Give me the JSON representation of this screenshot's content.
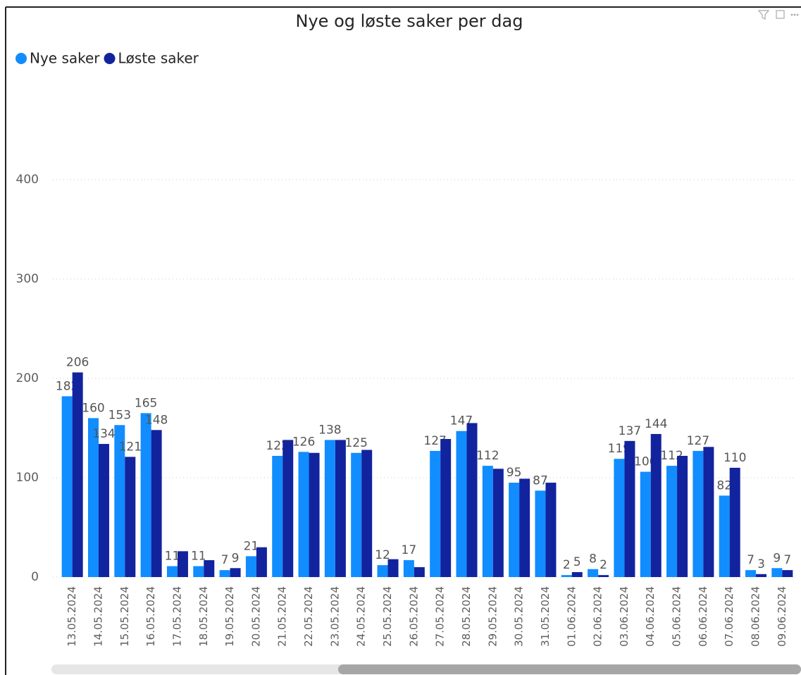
{
  "chart_data": {
    "type": "bar",
    "title": "Nye og løste saker per dag",
    "categories": [
      "13.05.2024",
      "14.05.2024",
      "15.05.2024",
      "16.05.2024",
      "17.05.2024",
      "18.05.2024",
      "19.05.2024",
      "20.05.2024",
      "21.05.2024",
      "22.05.2024",
      "23.05.2024",
      "24.05.2024",
      "25.05.2024",
      "26.05.2024",
      "27.05.2024",
      "28.05.2024",
      "29.05.2024",
      "30.05.2024",
      "31.05.2024",
      "01.06.2024",
      "02.06.2024",
      "03.06.2024",
      "04.06.2024",
      "05.06.2024",
      "06.06.2024",
      "07.06.2024",
      "08.06.2024",
      "09.06.2024"
    ],
    "series": [
      {
        "name": "Nye saker",
        "color": "#118dff",
        "values": [
          182,
          160,
          153,
          165,
          11,
          11,
          7,
          21,
          122,
          126,
          138,
          125,
          12,
          17,
          127,
          147,
          112,
          95,
          87,
          2,
          8,
          119,
          106,
          112,
          127,
          82,
          7,
          9
        ],
        "value_labels": [
          "182",
          "160",
          "153",
          "165",
          "11",
          "11",
          "7",
          "21",
          "122",
          "126",
          "138",
          "125",
          "12",
          "17",
          "127",
          "147",
          "112",
          "95",
          "87",
          "2",
          "8",
          "119",
          "106",
          "112",
          "127",
          "82",
          "7",
          "9"
        ]
      },
      {
        "name": "Løste saker",
        "color": "#12239e",
        "values": [
          206,
          134,
          121,
          148,
          26,
          17,
          9,
          30,
          138,
          125,
          138,
          128,
          18,
          10,
          139,
          155,
          109,
          99,
          95,
          5,
          2,
          137,
          144,
          122,
          131,
          110,
          3,
          7
        ],
        "value_labels": [
          "206",
          "134",
          "121",
          "148",
          null,
          null,
          "9",
          null,
          null,
          null,
          null,
          null,
          null,
          null,
          null,
          null,
          null,
          null,
          null,
          "5",
          "2",
          "137",
          "144",
          null,
          null,
          "110",
          "3",
          "7"
        ]
      }
    ],
    "ylim": [
      0,
      500
    ],
    "yticks": [
      0,
      100,
      200,
      300,
      400
    ],
    "grid": true,
    "legend": "top-left"
  }
}
